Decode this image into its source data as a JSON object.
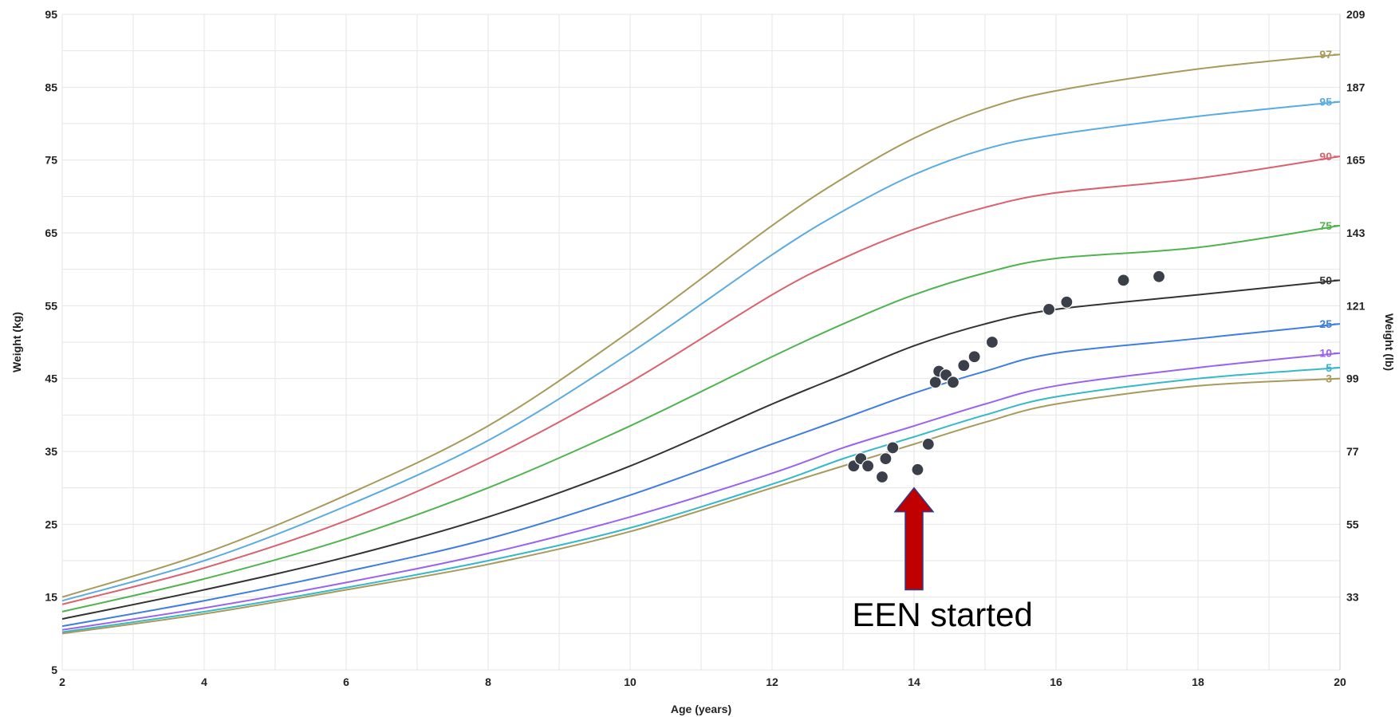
{
  "chart_data": {
    "type": "line",
    "xlabel": "Age (years)",
    "ylabel_left": "Weight (kg)",
    "ylabel_right": "Weight (lb)",
    "xlim": [
      2,
      20
    ],
    "ylim": [
      5,
      95
    ],
    "x_ticks": [
      2,
      4,
      6,
      8,
      10,
      12,
      14,
      16,
      18,
      20
    ],
    "y_ticks_left": [
      5,
      15,
      25,
      35,
      45,
      55,
      65,
      75,
      85,
      95
    ],
    "y_ticks_right": [
      {
        "kg": 15,
        "label": "33"
      },
      {
        "kg": 25,
        "label": "55"
      },
      {
        "kg": 35,
        "label": "77"
      },
      {
        "kg": 45,
        "label": "99"
      },
      {
        "kg": 55,
        "label": "121"
      },
      {
        "kg": 65,
        "label": "143"
      },
      {
        "kg": 75,
        "label": "165"
      },
      {
        "kg": 85,
        "label": "187"
      },
      {
        "kg": 95,
        "label": "209"
      }
    ],
    "grid": true,
    "x": [
      2,
      4,
      6,
      8,
      10,
      12,
      13,
      14,
      15,
      16,
      18,
      20
    ],
    "series": [
      {
        "name": "97",
        "color": "#a89a5a",
        "values": [
          15.0,
          21.0,
          29.0,
          38.5,
          51.5,
          66.0,
          72.5,
          78.0,
          82.0,
          84.5,
          87.5,
          89.5
        ]
      },
      {
        "name": "95",
        "color": "#5aabe0",
        "values": [
          14.5,
          20.0,
          27.5,
          36.5,
          48.5,
          62.0,
          68.0,
          73.0,
          76.5,
          78.5,
          81.0,
          83.0
        ]
      },
      {
        "name": "90",
        "color": "#d9626f",
        "values": [
          14.0,
          19.0,
          25.5,
          34.0,
          44.5,
          56.5,
          61.5,
          65.5,
          68.5,
          70.5,
          72.5,
          75.5
        ]
      },
      {
        "name": "75",
        "color": "#4fb34f",
        "values": [
          13.0,
          17.5,
          23.0,
          30.0,
          38.5,
          48.0,
          52.5,
          56.5,
          59.5,
          61.5,
          63.0,
          66.0
        ]
      },
      {
        "name": "50",
        "color": "#333333",
        "values": [
          12.0,
          16.0,
          20.5,
          26.0,
          33.0,
          41.5,
          45.5,
          49.5,
          52.5,
          54.5,
          56.5,
          58.5
        ]
      },
      {
        "name": "25",
        "color": "#3f7ee0",
        "values": [
          11.0,
          14.5,
          18.5,
          23.0,
          29.0,
          36.0,
          39.5,
          43.0,
          46.0,
          48.5,
          50.5,
          52.5
        ]
      },
      {
        "name": "10",
        "color": "#9a63ee",
        "values": [
          10.5,
          13.5,
          17.0,
          21.0,
          26.0,
          32.0,
          35.5,
          38.5,
          41.5,
          44.0,
          46.5,
          48.5
        ]
      },
      {
        "name": "5",
        "color": "#35b8c8",
        "values": [
          10.2,
          13.0,
          16.3,
          20.0,
          24.5,
          30.5,
          34.0,
          37.0,
          40.0,
          42.5,
          45.0,
          46.5
        ]
      },
      {
        "name": "3",
        "color": "#a89a5a",
        "values": [
          10.0,
          12.7,
          16.0,
          19.5,
          24.0,
          30.0,
          33.0,
          36.0,
          39.0,
          41.5,
          44.0,
          45.0
        ]
      }
    ],
    "points": {
      "marker_color": "#3a3f4a",
      "x": [
        13.15,
        13.25,
        13.35,
        13.55,
        13.6,
        13.7,
        14.05,
        14.2,
        14.3,
        14.35,
        14.45,
        14.55,
        14.7,
        14.85,
        15.1,
        15.9,
        16.15,
        16.95,
        17.45
      ],
      "y": [
        33.0,
        34.0,
        33.0,
        31.5,
        34.0,
        35.5,
        32.5,
        36.0,
        44.5,
        46.0,
        45.5,
        44.5,
        46.8,
        48.0,
        50.0,
        54.5,
        55.5,
        58.5,
        59.0
      ]
    },
    "annotations": [
      {
        "text": "EEN started",
        "type": "arrow",
        "x": 14.0,
        "y_from": 16.0,
        "y_to": 30.0,
        "color": "#c00000",
        "text_x": 14.4,
        "text_y": 11.0
      }
    ]
  }
}
